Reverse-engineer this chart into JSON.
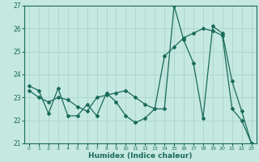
{
  "xlabel": "Humidex (Indice chaleur)",
  "bg_color": "#c5e8e0",
  "grid_color": "#aad4cc",
  "line_color": "#1a6b5a",
  "xlim": [
    -0.5,
    23.5
  ],
  "ylim": [
    21,
    27
  ],
  "xticks": [
    0,
    1,
    2,
    3,
    4,
    5,
    6,
    7,
    8,
    9,
    10,
    11,
    12,
    13,
    14,
    15,
    16,
    17,
    18,
    19,
    20,
    21,
    22,
    23
  ],
  "yticks": [
    21,
    22,
    23,
    24,
    25,
    26,
    27
  ],
  "series1_x": [
    0,
    1,
    2,
    3,
    4,
    5,
    6,
    7,
    8,
    9,
    10,
    11,
    12,
    13,
    14,
    15,
    16,
    17,
    18,
    19,
    20,
    21,
    22,
    23
  ],
  "series1_y": [
    23.5,
    23.3,
    22.3,
    23.4,
    22.2,
    22.2,
    22.7,
    22.2,
    23.2,
    22.8,
    22.2,
    21.9,
    22.1,
    22.5,
    22.5,
    27.0,
    25.5,
    24.5,
    22.1,
    26.1,
    25.8,
    23.7,
    22.4,
    21.0
  ],
  "series2_x": [
    0,
    1,
    2,
    3,
    4,
    5,
    6,
    7,
    8,
    9,
    10,
    11,
    12,
    13,
    14,
    15,
    16,
    17,
    18,
    19,
    20,
    21,
    22,
    23
  ],
  "series2_y": [
    23.3,
    23.0,
    22.8,
    23.0,
    22.9,
    22.6,
    22.4,
    23.0,
    23.1,
    23.2,
    23.3,
    23.0,
    22.7,
    22.5,
    24.8,
    25.2,
    25.6,
    25.8,
    26.0,
    25.9,
    25.7,
    22.5,
    22.0,
    21.0
  ]
}
